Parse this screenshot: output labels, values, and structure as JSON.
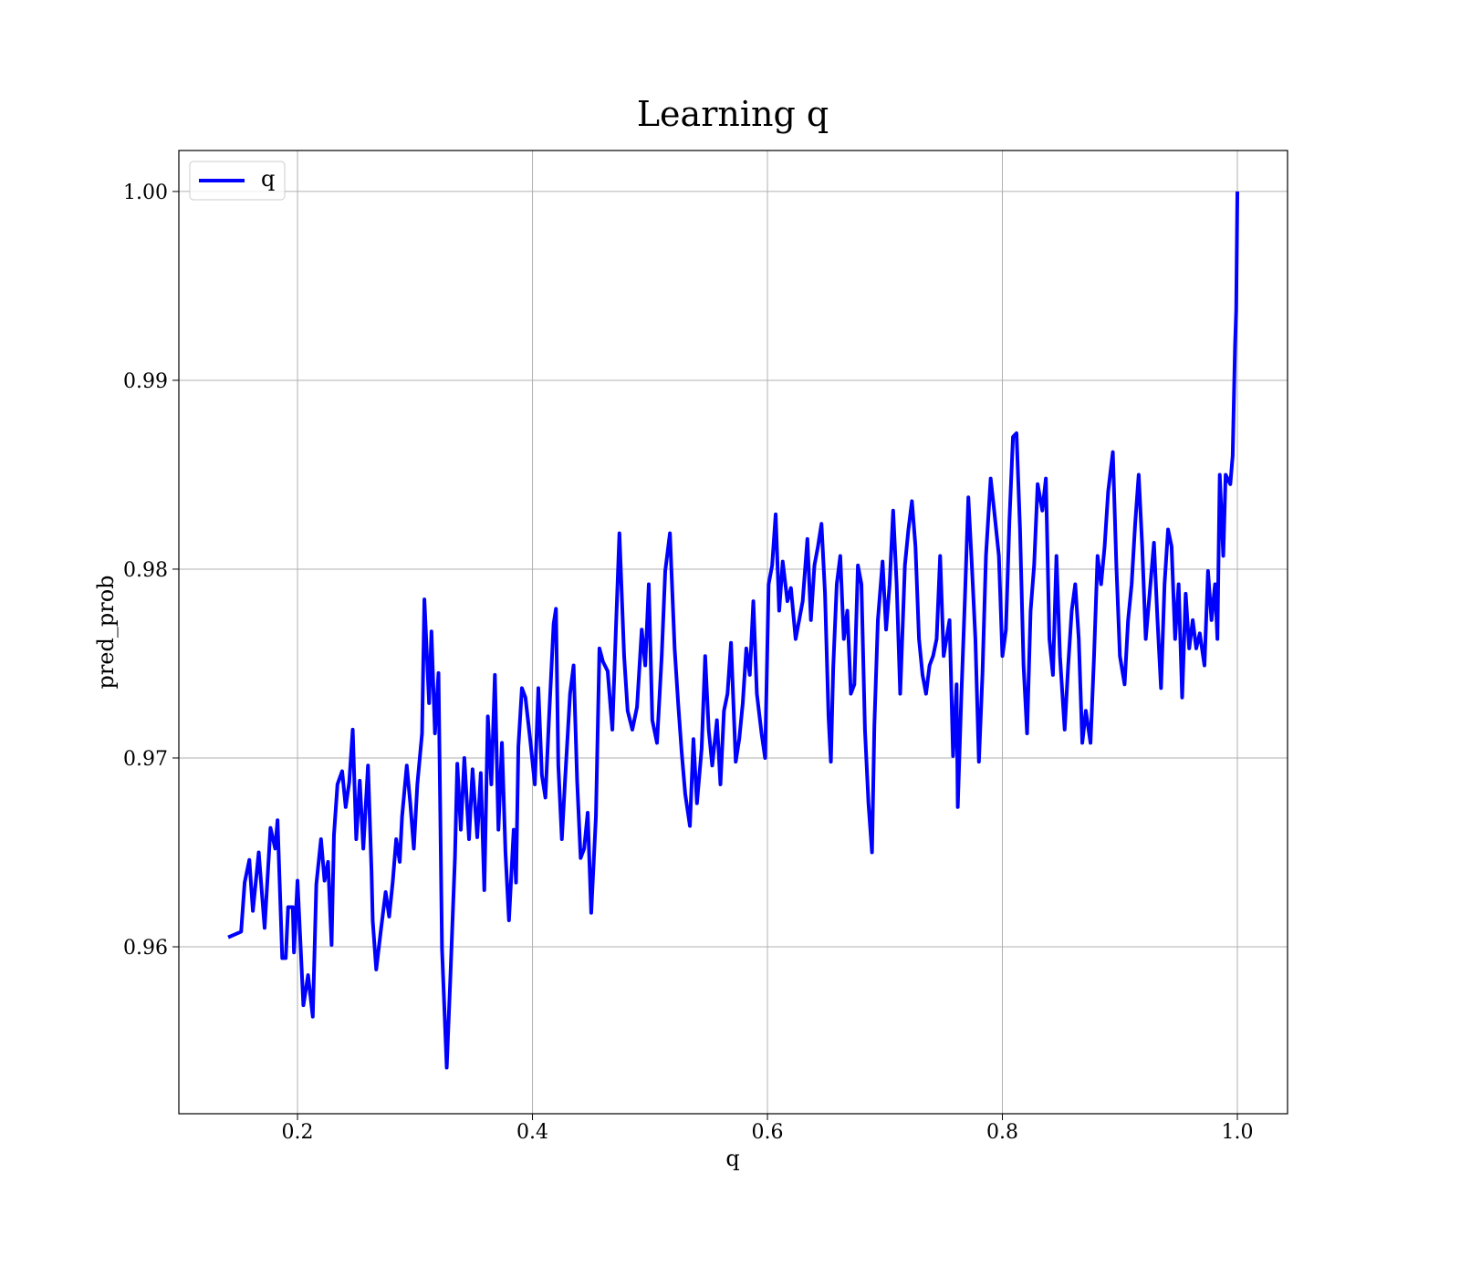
{
  "chart_data": {
    "type": "line",
    "title": "Learning q",
    "xlabel": "q",
    "ylabel": "pred_prob",
    "x": [
      0.141,
      0.152,
      0.155,
      0.159,
      0.162,
      0.167,
      0.172,
      0.177,
      0.181,
      0.183,
      0.187,
      0.19,
      0.192,
      0.196,
      0.197,
      0.2,
      0.205,
      0.209,
      0.213,
      0.216,
      0.22,
      0.223,
      0.226,
      0.229,
      0.231,
      0.234,
      0.238,
      0.241,
      0.244,
      0.247,
      0.25,
      0.253,
      0.256,
      0.26,
      0.263,
      0.264,
      0.267,
      0.271,
      0.275,
      0.278,
      0.281,
      0.284,
      0.287,
      0.289,
      0.293,
      0.296,
      0.299,
      0.302,
      0.306,
      0.308,
      0.312,
      0.314,
      0.317,
      0.32,
      0.323,
      0.327,
      0.33,
      0.334,
      0.336,
      0.339,
      0.342,
      0.346,
      0.349,
      0.353,
      0.356,
      0.359,
      0.362,
      0.365,
      0.368,
      0.371,
      0.374,
      0.377,
      0.38,
      0.384,
      0.386,
      0.388,
      0.391,
      0.394,
      0.398,
      0.402,
      0.405,
      0.408,
      0.411,
      0.414,
      0.418,
      0.42,
      0.422,
      0.425,
      0.428,
      0.432,
      0.435,
      0.438,
      0.441,
      0.444,
      0.447,
      0.45,
      0.454,
      0.457,
      0.46,
      0.464,
      0.468,
      0.471,
      0.474,
      0.478,
      0.481,
      0.485,
      0.489,
      0.493,
      0.496,
      0.499,
      0.502,
      0.506,
      0.51,
      0.513,
      0.517,
      0.521,
      0.524,
      0.527,
      0.53,
      0.534,
      0.537,
      0.54,
      0.544,
      0.547,
      0.55,
      0.553,
      0.557,
      0.56,
      0.563,
      0.566,
      0.569,
      0.573,
      0.576,
      0.579,
      0.582,
      0.585,
      0.588,
      0.591,
      0.595,
      0.598,
      0.601,
      0.604,
      0.607,
      0.61,
      0.613,
      0.617,
      0.62,
      0.624,
      0.627,
      0.63,
      0.634,
      0.637,
      0.64,
      0.643,
      0.646,
      0.649,
      0.652,
      0.654,
      0.656,
      0.659,
      0.662,
      0.665,
      0.668,
      0.671,
      0.674,
      0.677,
      0.68,
      0.683,
      0.686,
      0.689,
      0.691,
      0.694,
      0.698,
      0.701,
      0.704,
      0.707,
      0.71,
      0.713,
      0.717,
      0.72,
      0.723,
      0.726,
      0.729,
      0.732,
      0.735,
      0.738,
      0.741,
      0.744,
      0.747,
      0.75,
      0.755,
      0.758,
      0.761,
      0.762,
      0.765,
      0.768,
      0.771,
      0.774,
      0.777,
      0.78,
      0.783,
      0.786,
      0.79,
      0.793,
      0.797,
      0.8,
      0.803,
      0.806,
      0.809,
      0.812,
      0.815,
      0.818,
      0.821,
      0.824,
      0.827,
      0.83,
      0.834,
      0.837,
      0.84,
      0.843,
      0.846,
      0.849,
      0.853,
      0.856,
      0.859,
      0.862,
      0.865,
      0.868,
      0.871,
      0.875,
      0.878,
      0.881,
      0.884,
      0.887,
      0.89,
      0.894,
      0.897,
      0.9,
      0.904,
      0.907,
      0.91,
      0.913,
      0.916,
      0.919,
      0.922,
      0.926,
      0.929,
      0.932,
      0.935,
      0.938,
      0.941,
      0.944,
      0.947,
      0.95,
      0.953,
      0.956,
      0.959,
      0.962,
      0.965,
      0.968,
      0.972,
      0.975,
      0.978,
      0.981,
      0.983,
      0.985,
      0.988,
      0.99,
      0.994,
      0.996,
      0.998,
      0.999,
      1.0
    ],
    "series": [
      {
        "name": "q",
        "color": "#0000ff",
        "values": [
          0.9605,
          0.9608,
          0.9634,
          0.9646,
          0.9619,
          0.965,
          0.961,
          0.9663,
          0.9652,
          0.9667,
          0.9594,
          0.9594,
          0.9621,
          0.9621,
          0.9597,
          0.9635,
          0.9569,
          0.9585,
          0.9563,
          0.9633,
          0.9657,
          0.9635,
          0.9645,
          0.9601,
          0.9659,
          0.9686,
          0.9693,
          0.9674,
          0.9687,
          0.9715,
          0.9657,
          0.9688,
          0.9652,
          0.9696,
          0.964,
          0.9614,
          0.9588,
          0.9609,
          0.9629,
          0.9616,
          0.9634,
          0.9657,
          0.9645,
          0.9669,
          0.9696,
          0.9676,
          0.9652,
          0.9686,
          0.9713,
          0.9784,
          0.9729,
          0.9767,
          0.9713,
          0.9745,
          0.9599,
          0.9536,
          0.9582,
          0.9647,
          0.9697,
          0.9662,
          0.97,
          0.9657,
          0.9694,
          0.9658,
          0.9692,
          0.963,
          0.9722,
          0.9686,
          0.9744,
          0.9662,
          0.9708,
          0.965,
          0.9614,
          0.9662,
          0.9634,
          0.9706,
          0.9737,
          0.9732,
          0.971,
          0.9686,
          0.9737,
          0.9691,
          0.9679,
          0.972,
          0.9771,
          0.9779,
          0.9696,
          0.9657,
          0.9691,
          0.9734,
          0.9749,
          0.9688,
          0.9647,
          0.9652,
          0.9671,
          0.9618,
          0.9669,
          0.9758,
          0.9751,
          0.9746,
          0.9715,
          0.9768,
          0.9819,
          0.9754,
          0.9725,
          0.9715,
          0.9727,
          0.9768,
          0.9749,
          0.9792,
          0.972,
          0.9708,
          0.9754,
          0.9799,
          0.9819,
          0.9758,
          0.9729,
          0.9703,
          0.9681,
          0.9664,
          0.971,
          0.9676,
          0.9705,
          0.9754,
          0.9715,
          0.9696,
          0.972,
          0.9686,
          0.9725,
          0.9734,
          0.9761,
          0.9698,
          0.971,
          0.9729,
          0.9758,
          0.9744,
          0.9783,
          0.9734,
          0.9713,
          0.97,
          0.9792,
          0.9802,
          0.9829,
          0.9778,
          0.9804,
          0.9783,
          0.979,
          0.9763,
          0.9773,
          0.9783,
          0.9816,
          0.9773,
          0.9802,
          0.9812,
          0.9824,
          0.9787,
          0.9722,
          0.9698,
          0.9748,
          0.9792,
          0.9807,
          0.9763,
          0.9778,
          0.9734,
          0.9739,
          0.9802,
          0.9792,
          0.9715,
          0.9676,
          0.965,
          0.9717,
          0.9773,
          0.9804,
          0.9768,
          0.9792,
          0.9831,
          0.9792,
          0.9734,
          0.9802,
          0.9821,
          0.9836,
          0.9812,
          0.9763,
          0.9744,
          0.9734,
          0.9749,
          0.9754,
          0.9763,
          0.9807,
          0.9754,
          0.9773,
          0.9701,
          0.9739,
          0.9674,
          0.9732,
          0.9783,
          0.9838,
          0.9802,
          0.9763,
          0.9698,
          0.9744,
          0.9807,
          0.9848,
          0.9831,
          0.9807,
          0.9754,
          0.9768,
          0.9826,
          0.987,
          0.9872,
          0.9821,
          0.9749,
          0.9713,
          0.9778,
          0.9802,
          0.9845,
          0.9831,
          0.9848,
          0.9763,
          0.9744,
          0.9807,
          0.9754,
          0.9715,
          0.9749,
          0.9778,
          0.9792,
          0.9763,
          0.9708,
          0.9725,
          0.9708,
          0.9754,
          0.9807,
          0.9792,
          0.9812,
          0.9841,
          0.9862,
          0.9802,
          0.9754,
          0.9739,
          0.9773,
          0.9792,
          0.9824,
          0.985,
          0.9812,
          0.9763,
          0.9792,
          0.9814,
          0.9773,
          0.9737,
          0.9792,
          0.9821,
          0.9812,
          0.9763,
          0.9792,
          0.9732,
          0.9787,
          0.9758,
          0.9773,
          0.9758,
          0.9766,
          0.9749,
          0.9799,
          0.9773,
          0.9792,
          0.9763,
          0.985,
          0.9807,
          0.985,
          0.9845,
          0.986,
          0.9918,
          0.9937,
          1.0
        ]
      }
    ],
    "xlim": [
      0.099,
      1.0427
    ],
    "ylim": [
      0.95116,
      1.00217
    ],
    "xticks": [
      0.2,
      0.4,
      0.6,
      0.8,
      {
        "value": 1,
        "label": "1.0"
      }
    ],
    "yticks": [
      0.96,
      0.97,
      0.98,
      0.99,
      {
        "value": 1,
        "label": "1.00"
      }
    ],
    "grid": true,
    "legend": "upper left"
  }
}
